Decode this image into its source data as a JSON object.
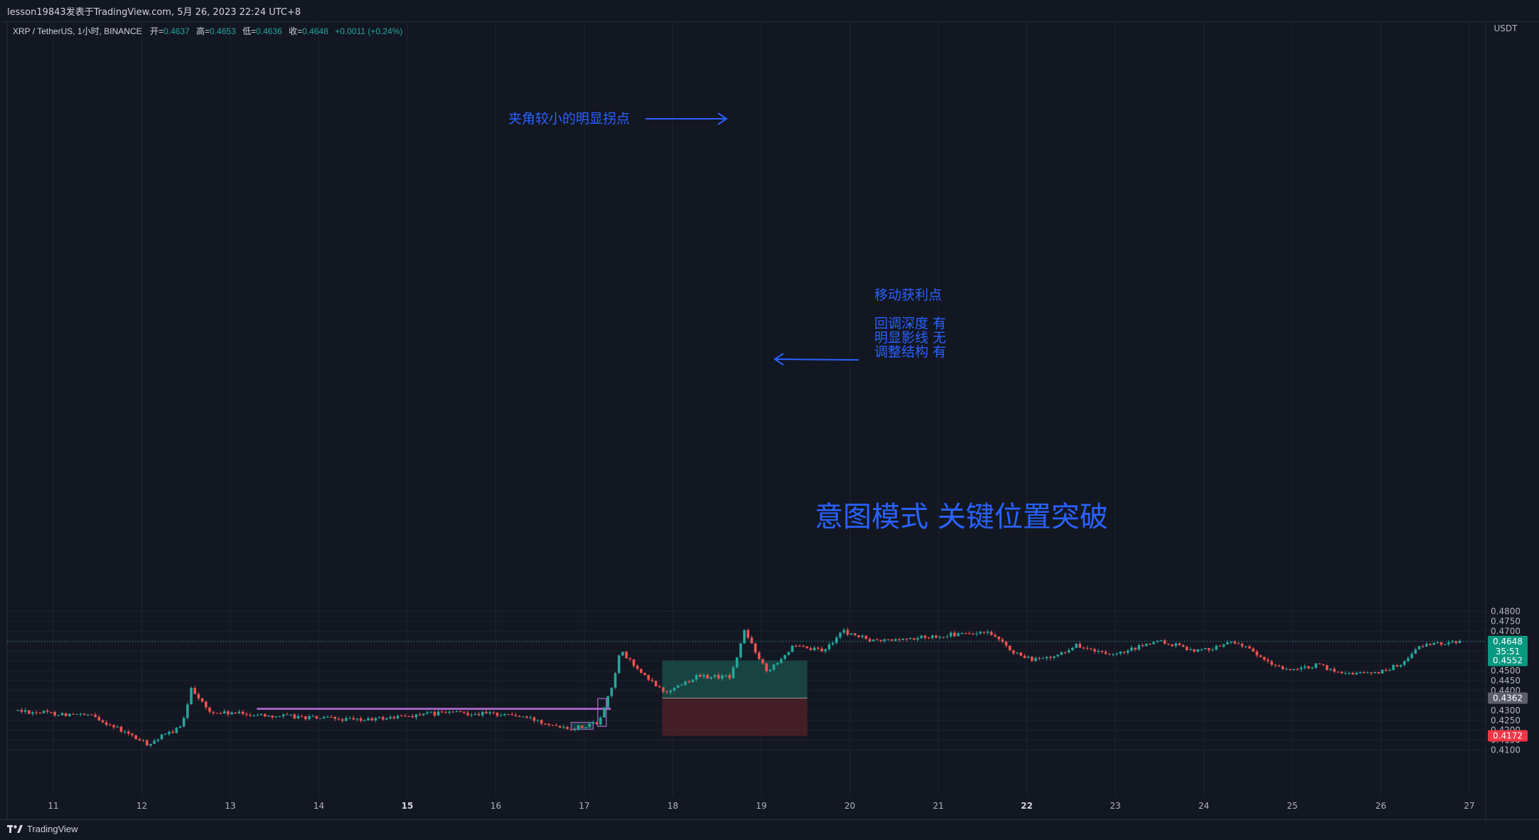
{
  "snapshot_caption": "lesson19843发表于TradingView.com,  5月 26, 2023 22:24 UTC+8",
  "brand_label": "TradingView",
  "colors": {
    "background": "#131722",
    "grid": "#1f2330",
    "up": "#26a69a",
    "down": "#ef5350",
    "axis_text": "#b2b5be",
    "annotation_blue": "#2962ff",
    "profit_zone": "#1b4b45",
    "stop_zone": "#4a1f28"
  },
  "legend": {
    "symbol": "XRP / TetherUS, 1小时, BINANCE",
    "open_label": "开=",
    "open_value": "0.4637",
    "high_label": "高=",
    "high_value": "0.4653",
    "low_label": "低=",
    "low_value": "0.4636",
    "close_label": "收=",
    "close_value": "0.4648",
    "change": "+0.0011 (+0.24%)"
  },
  "price_axis": {
    "unit": "USDT",
    "ticks": [
      "0.4800",
      "0.4750",
      "0.4700",
      "0.4600",
      "0.4550",
      "0.4500",
      "0.4450",
      "0.4400",
      "0.4350",
      "0.4300",
      "0.4250",
      "0.4200",
      "0.4150",
      "0.4100"
    ]
  },
  "price_tags": {
    "current_price": "0.4648",
    "countdown": "35:51",
    "target": "0.4552",
    "entry": "0.4362",
    "stop": "0.4172"
  },
  "time_axis": {
    "labels": [
      "11",
      "12",
      "13",
      "14",
      "15",
      "16",
      "17",
      "18",
      "19",
      "20",
      "21",
      "22",
      "23",
      "24",
      "25",
      "26",
      "27"
    ],
    "bold_labels": [
      "15",
      "22"
    ]
  },
  "annotations": {
    "turning_point": "夹角较小的明显拐点",
    "trailing_title": "移动获利点",
    "trailing_line1": "回调深度 有",
    "trailing_line2": "明显影线 无",
    "trailing_line3": "调整结构 有",
    "headline": "意图模式 关键位置突破"
  },
  "chart_data": {
    "type": "candlestick",
    "symbol": "XRP / TetherUS",
    "interval": "1小时",
    "exchange": "BINANCE",
    "x_labels": [
      "11",
      "12",
      "13",
      "14",
      "15",
      "16",
      "17",
      "18",
      "19",
      "20",
      "21",
      "22",
      "23",
      "24",
      "25",
      "26",
      "27"
    ],
    "ylim": [
      0.405,
      0.481
    ],
    "key_points": [
      {
        "day": 10.6,
        "price": 0.43
      },
      {
        "day": 11.5,
        "price": 0.427
      },
      {
        "day": 12.1,
        "price": 0.413
      },
      {
        "day": 12.5,
        "price": 0.422
      },
      {
        "day": 12.6,
        "price": 0.442
      },
      {
        "day": 12.8,
        "price": 0.429
      },
      {
        "day": 13.3,
        "price": 0.428
      },
      {
        "day": 14.5,
        "price": 0.425
      },
      {
        "day": 15.5,
        "price": 0.429
      },
      {
        "day": 16.2,
        "price": 0.428
      },
      {
        "day": 16.9,
        "price": 0.421
      },
      {
        "day": 17.2,
        "price": 0.424
      },
      {
        "day": 17.35,
        "price": 0.442
      },
      {
        "day": 17.45,
        "price": 0.46
      },
      {
        "day": 17.7,
        "price": 0.448
      },
      {
        "day": 17.95,
        "price": 0.439
      },
      {
        "day": 18.3,
        "price": 0.447
      },
      {
        "day": 18.7,
        "price": 0.447
      },
      {
        "day": 18.85,
        "price": 0.47
      },
      {
        "day": 19.1,
        "price": 0.45
      },
      {
        "day": 19.4,
        "price": 0.462
      },
      {
        "day": 19.75,
        "price": 0.46
      },
      {
        "day": 19.95,
        "price": 0.47
      },
      {
        "day": 20.3,
        "price": 0.465
      },
      {
        "day": 20.7,
        "price": 0.466
      },
      {
        "day": 21.1,
        "price": 0.468
      },
      {
        "day": 21.6,
        "price": 0.469
      },
      {
        "day": 22.0,
        "price": 0.456
      },
      {
        "day": 22.3,
        "price": 0.456
      },
      {
        "day": 22.6,
        "price": 0.463
      },
      {
        "day": 23.0,
        "price": 0.457
      },
      {
        "day": 23.5,
        "price": 0.465
      },
      {
        "day": 24.0,
        "price": 0.46
      },
      {
        "day": 24.4,
        "price": 0.465
      },
      {
        "day": 24.8,
        "price": 0.453
      },
      {
        "day": 25.1,
        "price": 0.45
      },
      {
        "day": 25.3,
        "price": 0.453
      },
      {
        "day": 25.6,
        "price": 0.449
      },
      {
        "day": 26.0,
        "price": 0.449
      },
      {
        "day": 26.3,
        "price": 0.454
      },
      {
        "day": 26.45,
        "price": 0.462
      },
      {
        "day": 26.9,
        "price": 0.4648
      }
    ],
    "position": {
      "entry": 0.4362,
      "target": 0.4552,
      "stop": 0.4172,
      "start_day": 17.88,
      "end_day": 19.52
    },
    "range_lines": [
      0.431,
      0.4306
    ],
    "range_days": [
      13.3,
      17.3
    ],
    "breakout_candle": {
      "day": 17.2,
      "low": 0.422,
      "high": 0.436
    },
    "base_box": {
      "day_from": 16.85,
      "day_to": 17.1,
      "low": 0.4205,
      "high": 0.424
    }
  }
}
